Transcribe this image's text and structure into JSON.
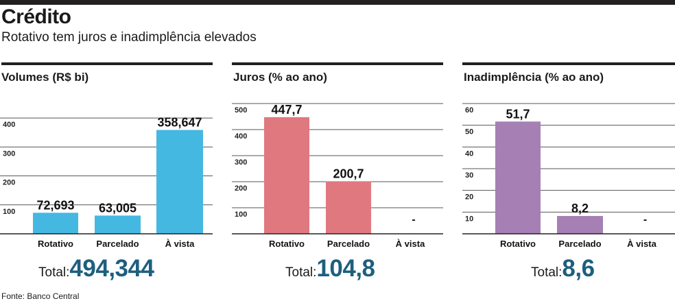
{
  "header": {
    "title": "Crédito",
    "subtitle": "Rotativo tem juros e inadimplência elevados"
  },
  "source": "Fonte: Banco Central",
  "totals": [
    {
      "label": "Total:",
      "value": "494,344"
    },
    {
      "label": "Total:",
      "value": "104,8"
    },
    {
      "label": "Total:",
      "value": "8,6"
    }
  ],
  "chart_data": [
    {
      "type": "bar",
      "title": "Volumes (R$ bi)",
      "categories": [
        "Rotativo",
        "Parcelado",
        "À vista"
      ],
      "values": [
        72.693,
        63.005,
        358.647
      ],
      "value_labels": [
        "72,693",
        "63,005",
        "358,647"
      ],
      "color": "#45b8e1",
      "ylim": [
        0,
        450
      ],
      "yticks": [
        100,
        200,
        300,
        400
      ],
      "grid": true
    },
    {
      "type": "bar",
      "title": "Juros (% ao ano)",
      "categories": [
        "Rotativo",
        "Parcelado",
        "À vista"
      ],
      "values": [
        447.7,
        200.7,
        null
      ],
      "value_labels": [
        "447,7",
        "200,7",
        "-"
      ],
      "color": "#e07880",
      "ylim": [
        0,
        500
      ],
      "yticks": [
        100,
        200,
        300,
        400,
        500
      ],
      "grid": true
    },
    {
      "type": "bar",
      "title": "Inadimplência (% ao ano)",
      "categories": [
        "Rotativo",
        "Parcelado",
        "À vista"
      ],
      "values": [
        51.7,
        8.2,
        null
      ],
      "value_labels": [
        "51,7",
        "8,2",
        "-"
      ],
      "color": "#a67fb4",
      "ylim": [
        0,
        60
      ],
      "yticks": [
        10,
        20,
        30,
        40,
        50,
        60
      ],
      "grid": true
    }
  ]
}
